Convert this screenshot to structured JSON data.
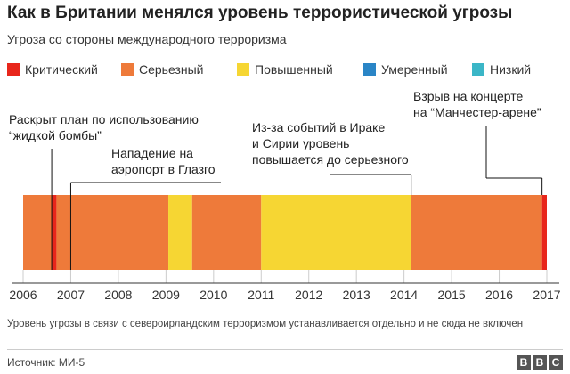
{
  "header": {
    "title": "Как в Британии менялся уровень террористической угрозы",
    "subtitle": "Угроза со стороны международного терроризма"
  },
  "legend": [
    {
      "label": "Критический",
      "color": "#e8261b"
    },
    {
      "label": "Серьезный",
      "color": "#ee7a3a"
    },
    {
      "label": "Повышенный",
      "color": "#f6d633"
    },
    {
      "label": "Умеренный",
      "color": "#2a85c6"
    },
    {
      "label": "Низкий",
      "color": "#3bb6c7"
    }
  ],
  "chart_data": {
    "type": "timeline",
    "x_ticks": [
      "2006",
      "2007",
      "2008",
      "2009",
      "2010",
      "2011",
      "2012",
      "2013",
      "2014",
      "2015",
      "2016",
      "2017"
    ],
    "x_range": [
      2006,
      2017
    ],
    "segments": [
      {
        "start": 2006.0,
        "end": 2006.6,
        "level": "Серьезный",
        "color": "#ee7a3a"
      },
      {
        "start": 2006.6,
        "end": 2006.7,
        "level": "Критический",
        "color": "#e8261b"
      },
      {
        "start": 2006.7,
        "end": 2009.05,
        "level": "Серьезный",
        "color": "#ee7a3a"
      },
      {
        "start": 2009.05,
        "end": 2009.55,
        "level": "Повышенный",
        "color": "#f6d633"
      },
      {
        "start": 2009.55,
        "end": 2011.0,
        "level": "Серьезный",
        "color": "#ee7a3a"
      },
      {
        "start": 2011.0,
        "end": 2014.15,
        "level": "Повышенный",
        "color": "#f6d633"
      },
      {
        "start": 2014.15,
        "end": 2016.9,
        "level": "Серьезный",
        "color": "#ee7a3a"
      },
      {
        "start": 2016.9,
        "end": 2017.0,
        "level": "Критический",
        "color": "#e8261b"
      }
    ],
    "annotations": [
      {
        "lines": [
          "Раскрыт план по использованию",
          "“жидкой бомбы”"
        ],
        "x": 2006.6
      },
      {
        "lines": [
          "Нападение на",
          "аэропорт в Глазго"
        ],
        "x": 2007.0
      },
      {
        "lines": [
          "Из-за событий в Ираке",
          "и Сирии уровень",
          "повышается до серьезного"
        ],
        "x": 2014.15
      },
      {
        "lines": [
          "Взрыв на концерте",
          "на “Манчестер-арене”"
        ],
        "x": 2016.9
      }
    ]
  },
  "footnote": "Уровень угрозы в связи с североирландским терроризмом устанавливается отдельно и не сюда не включен",
  "source": "Источник: МИ-5",
  "logo": [
    "B",
    "B",
    "C"
  ]
}
